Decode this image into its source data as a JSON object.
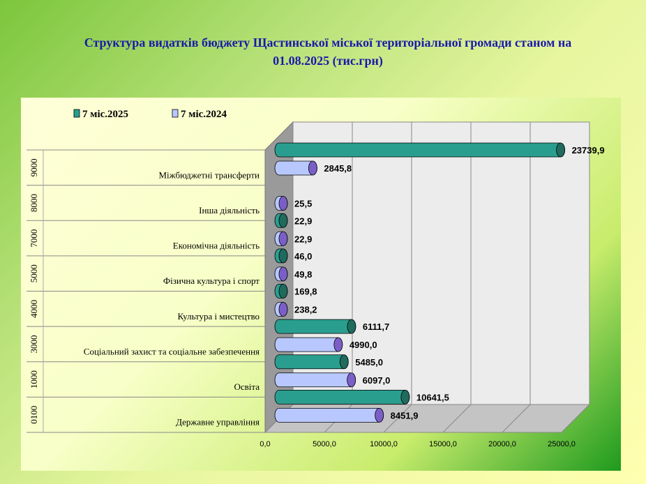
{
  "title_line1": "Структура видатків бюджету Щастинської міської територіальної громади станом на",
  "title_line2": "01.08.2025  (тис.грн)",
  "colors": {
    "series_2025": "#2a9e8e",
    "series_2024": "#b8c8ff",
    "cap_2024": "#7b5fc8",
    "cap_2025": "#1f6b5e",
    "title": "#1a1aa8"
  },
  "chart_data": {
    "type": "bar",
    "orientation": "horizontal",
    "codes": [
      "0100",
      "1000",
      "3000",
      "4000",
      "5000",
      "7000",
      "8000",
      "9000"
    ],
    "categories": [
      "Державне управління",
      "Освіта",
      "Соціальний захист та соціальне забезпечення",
      "Культура і мистецтво",
      "Фізична культура і спорт",
      "Економічна діяльність",
      "Інша діяльність",
      "Міжбюджетні трансферти"
    ],
    "series": [
      {
        "name": "7 міс.2025",
        "values": [
          10641.5,
          5485.0,
          6111.7,
          169.8,
          46.0,
          22.9,
          null,
          23739.9
        ],
        "labels": [
          "10641,5",
          "5485,0",
          "6111,7",
          "169,8",
          "46,0",
          "22,9",
          "",
          "23739,9"
        ]
      },
      {
        "name": "7 міс.2024",
        "values": [
          8451.9,
          6097.0,
          4990.0,
          238.2,
          49.8,
          22.9,
          25.5,
          2845.8
        ],
        "labels": [
          "8451,9",
          "6097,0",
          "4990,0",
          "238,2",
          "49,8",
          "22,9",
          "25,5",
          "2845,8"
        ]
      }
    ],
    "x_ticks": [
      "0,0",
      "5000,0",
      "10000,0",
      "15000,0",
      "20000,0",
      "25000,0"
    ],
    "xlim": [
      0,
      25000
    ],
    "legend": "top-left",
    "grid": true
  }
}
